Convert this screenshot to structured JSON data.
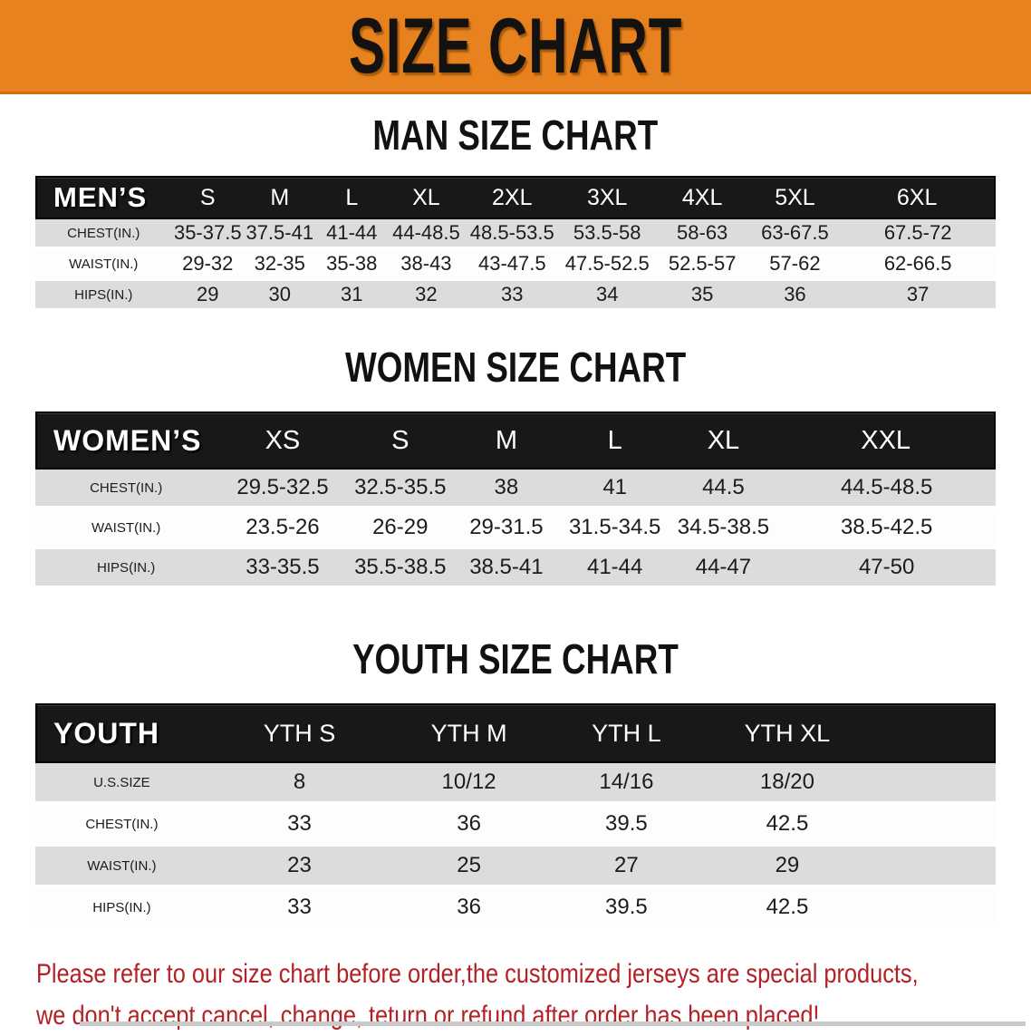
{
  "banner": {
    "title": "SIZE CHART"
  },
  "colors": {
    "banner_bg": "#E8821E",
    "header_bar": "#181818",
    "row_shaded": "#DCDCDC",
    "row_plain": "#FFFFFF",
    "disclaimer_text": "#B32025",
    "title_text": "#111111"
  },
  "sections": [
    {
      "title": "MAN SIZE CHART",
      "table": {
        "corner_label": "MEN’S",
        "columns": [
          "S",
          "M",
          "L",
          "XL",
          "2XL",
          "3XL",
          "4XL",
          "5XL",
          "6XL"
        ],
        "rows": [
          {
            "label": "CHEST(IN.)",
            "values": [
              "35-37.5",
              "37.5-41",
              "41-44",
              "44-48.5",
              "48.5-53.5",
              "53.5-58",
              "58-63",
              "63-67.5",
              "67.5-72"
            ]
          },
          {
            "label": "WAIST(IN.)",
            "values": [
              "29-32",
              "32-35",
              "35-38",
              "38-43",
              "43-47.5",
              "47.5-52.5",
              "52.5-57",
              "57-62",
              "62-66.5"
            ]
          },
          {
            "label": "HIPS(IN.)",
            "values": [
              "29",
              "30",
              "31",
              "32",
              "33",
              "34",
              "35",
              "36",
              "37"
            ]
          }
        ]
      }
    },
    {
      "title": "WOMEN SIZE CHART",
      "table": {
        "corner_label": "WOMEN’S",
        "columns": [
          "XS",
          "S",
          "M",
          "L",
          "XL",
          "XXL"
        ],
        "rows": [
          {
            "label": "CHEST(IN.)",
            "values": [
              "29.5-32.5",
              "32.5-35.5",
              "38",
              "41",
              "44.5",
              "44.5-48.5"
            ]
          },
          {
            "label": "WAIST(IN.)",
            "values": [
              "23.5-26",
              "26-29",
              "29-31.5",
              "31.5-34.5",
              "34.5-38.5",
              "38.5-42.5"
            ]
          },
          {
            "label": "HIPS(IN.)",
            "values": [
              "33-35.5",
              "35.5-38.5",
              "38.5-41",
              "41-44",
              "44-47",
              "47-50"
            ]
          }
        ]
      }
    },
    {
      "title": "YOUTH SIZE CHART",
      "table": {
        "corner_label": "YOUTH",
        "columns": [
          "YTH S",
          "YTH M",
          "YTH L",
          "YTH XL"
        ],
        "rows": [
          {
            "label": "U.S.SIZE",
            "values": [
              "8",
              "10/12",
              "14/16",
              "18/20"
            ]
          },
          {
            "label": "CHEST(IN.)",
            "values": [
              "33",
              "36",
              "39.5",
              "42.5"
            ]
          },
          {
            "label": "WAIST(IN.)",
            "values": [
              "23",
              "25",
              "27",
              "29"
            ]
          },
          {
            "label": "HIPS(IN.)",
            "values": [
              "33",
              "36",
              "39.5",
              "42.5"
            ]
          }
        ]
      }
    }
  ],
  "disclaimer": {
    "line1": "Please refer to our size chart before order,the customized jerseys are special products,",
    "line2": "we don't accept cancel, change, teturn or refund after order has been placed!"
  }
}
